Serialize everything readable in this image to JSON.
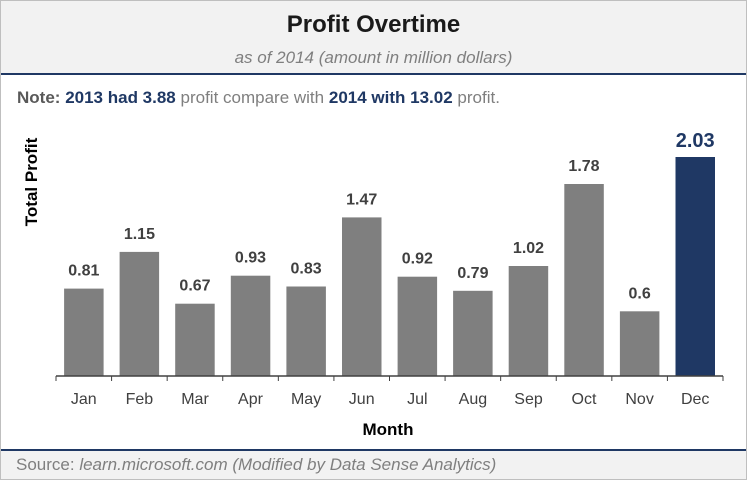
{
  "note": {
    "label": "Note:",
    "year_2013": "2013 had 3.88",
    "middle": "profit compare with",
    "year_2014": "2014 with 13.02",
    "end": "profit."
  },
  "source": {
    "label": "Source:",
    "text": "learn.microsoft.com (Modified by Data Sense Analytics)"
  },
  "colors": {
    "bar": "#7f7f7f",
    "highlight": "#1f3864",
    "label": "#404040"
  },
  "chart_data": {
    "type": "bar",
    "title": "Profit Overtime",
    "subtitle": "as of 2014 (amount in million dollars)",
    "xlabel": "Month",
    "ylabel": "Total Profit",
    "categories": [
      "Jan",
      "Feb",
      "Mar",
      "Apr",
      "May",
      "Jun",
      "Jul",
      "Aug",
      "Sep",
      "Oct",
      "Nov",
      "Dec"
    ],
    "values": [
      0.81,
      1.15,
      0.67,
      0.93,
      0.83,
      1.47,
      0.92,
      0.79,
      1.02,
      1.78,
      0.6,
      2.03
    ],
    "data_labels": [
      "0.81",
      "1.15",
      "0.67",
      "0.93",
      "0.83",
      "1.47",
      "0.92",
      "0.79",
      "1.02",
      "1.78",
      "0.6",
      "2.03"
    ],
    "highlight_category": "Dec",
    "ylim": [
      0,
      2.03
    ],
    "grid": false,
    "legend": "none"
  }
}
